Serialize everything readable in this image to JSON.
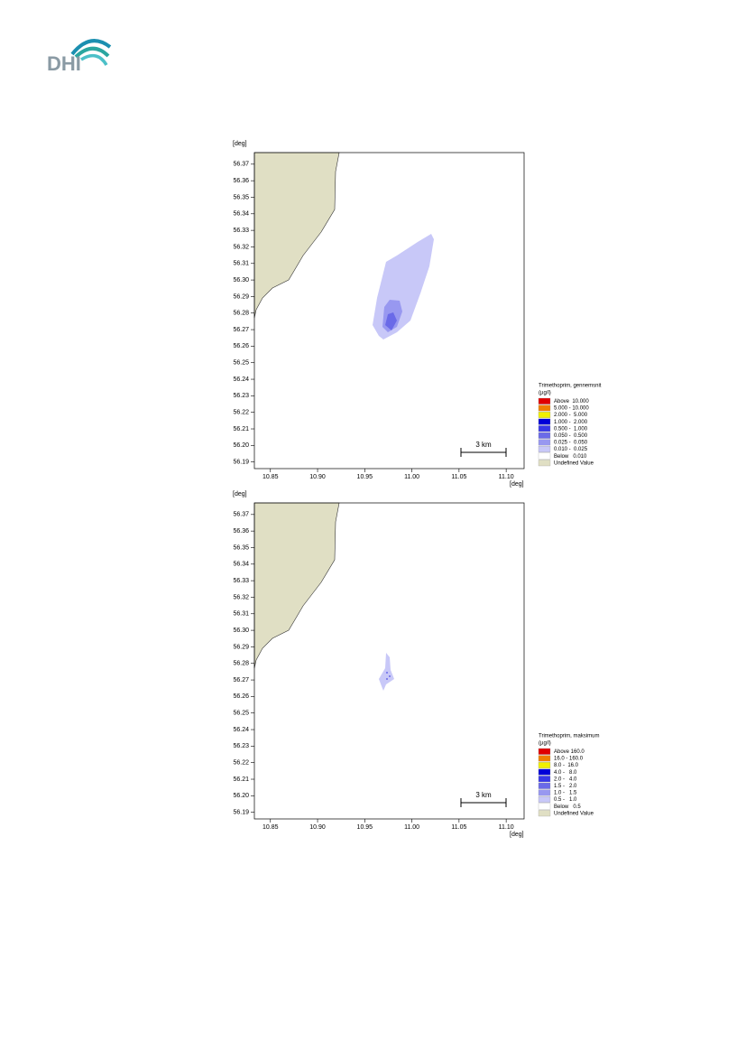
{
  "logo": {
    "text": "DHI"
  },
  "maps": [
    {
      "y_unit": "[deg]",
      "x_unit": "[deg]",
      "xlim": [
        10.833,
        11.119
      ],
      "ylim": [
        56.186,
        56.377
      ],
      "yticks": [
        56.37,
        56.36,
        56.35,
        56.34,
        56.33,
        56.32,
        56.31,
        {
          "value": 56.3,
          "label": "56.30"
        },
        56.29,
        56.28,
        56.27,
        56.26,
        56.25,
        56.24,
        56.23,
        56.22,
        56.21,
        {
          "value": 56.2,
          "label": "56.20"
        },
        56.19
      ],
      "xticks": [
        10.85,
        {
          "value": 10.9,
          "label": "10.90"
        },
        10.95,
        {
          "value": 11,
          "label": "11.00"
        },
        11.05,
        {
          "value": 11.1,
          "label": "11.10"
        }
      ],
      "scale_bar": "3 km",
      "legend": {
        "title": "Trimethoprim, gennemsnit",
        "unit": "(µg/l)",
        "items": [
          {
            "label": "Above  10.000",
            "color": "#e00000"
          },
          {
            "label": "5.000 - 10.000",
            "color": "#f08000"
          },
          {
            "label": "2.000 -  5.000",
            "color": "#f0f000"
          },
          {
            "label": "1.000 -  2.000",
            "color": "#0000d8"
          },
          {
            "label": "0.500 -  1.000",
            "color": "#3838e8"
          },
          {
            "label": "0.050 -  0.500",
            "color": "#6a6ae8"
          },
          {
            "label": "0.025 -  0.050",
            "color": "#9898f0"
          },
          {
            "label": "0.010 -  0.025",
            "color": "#c8c8f8"
          },
          {
            "label": "Below   0.010",
            "color": "#ffffff"
          },
          {
            "label": "Undefined Value",
            "color": "#e0dfc4"
          }
        ]
      }
    },
    {
      "y_unit": "[deg]",
      "x_unit": "[deg]",
      "xlim": [
        10.833,
        11.119
      ],
      "ylim": [
        56.186,
        56.377
      ],
      "yticks": [
        56.37,
        56.36,
        56.35,
        56.34,
        56.33,
        56.32,
        56.31,
        {
          "value": 56.3,
          "label": "56.30"
        },
        56.29,
        56.28,
        56.27,
        56.26,
        56.25,
        56.24,
        56.23,
        56.22,
        56.21,
        {
          "value": 56.2,
          "label": "56.20"
        },
        56.19
      ],
      "xticks": [
        10.85,
        {
          "value": 10.9,
          "label": "10.90"
        },
        10.95,
        {
          "value": 11,
          "label": "11.00"
        },
        11.05,
        {
          "value": 11.1,
          "label": "11.10"
        }
      ],
      "scale_bar": "3 km",
      "legend": {
        "title": "Trimethoprim, maksimum",
        "unit": "(µg/l)",
        "items": [
          {
            "label": "Above 160.0",
            "color": "#e00000"
          },
          {
            "label": "16.0 - 160.0",
            "color": "#f08000"
          },
          {
            "label": "8.0 -  16.0",
            "color": "#f0f000"
          },
          {
            "label": "4.0 -   8.0",
            "color": "#0000d8"
          },
          {
            "label": "2.0 -   4.0",
            "color": "#3838e8"
          },
          {
            "label": "1.5 -   2.0",
            "color": "#6a6ae8"
          },
          {
            "label": "1.0 -   1.5",
            "color": "#9898f0"
          },
          {
            "label": "0.5 -   1.0",
            "color": "#c8c8f8"
          },
          {
            "label": "Below   0.5",
            "color": "#ffffff"
          },
          {
            "label": "Undefined Value",
            "color": "#e0dfc4"
          }
        ]
      }
    }
  ]
}
